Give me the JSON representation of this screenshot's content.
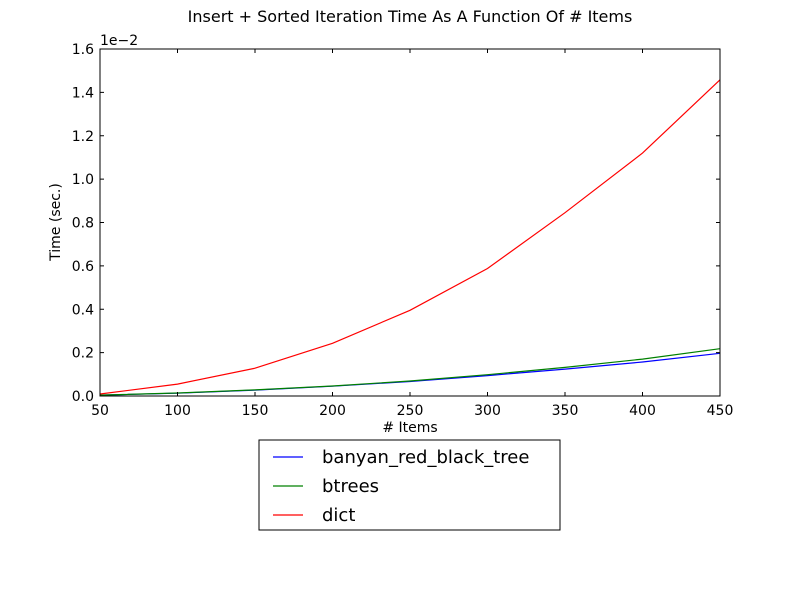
{
  "chart_data": {
    "type": "line",
    "title": "Insert + Sorted Iteration Time As A Function Of # Items",
    "xlabel": "# Items",
    "ylabel": "Time (sec.)",
    "y_exponent_label": "1e−2",
    "xlim": [
      50,
      450
    ],
    "ylim": [
      0,
      1.6
    ],
    "grid": false,
    "legend_placement": "below-center",
    "x": [
      50,
      100,
      150,
      200,
      250,
      300,
      350,
      400,
      450
    ],
    "x_ticks": [
      "50",
      "100",
      "150",
      "200",
      "250",
      "300",
      "350",
      "400",
      "450"
    ],
    "y_tick_values": [
      0,
      0.2,
      0.4,
      0.6,
      0.8,
      1.0,
      1.2,
      1.4,
      1.6
    ],
    "y_ticks": [
      "0.0",
      "0.2",
      "0.4",
      "0.6",
      "0.8",
      "1.0",
      "1.2",
      "1.4",
      "1.6"
    ],
    "series": [
      {
        "name": "banyan_red_black_tree",
        "color": "#0000ff",
        "values": [
          0.004,
          0.013,
          0.027,
          0.045,
          0.067,
          0.094,
          0.124,
          0.157,
          0.197
        ]
      },
      {
        "name": "btrees",
        "color": "#008000",
        "values": [
          0.004,
          0.014,
          0.028,
          0.046,
          0.069,
          0.098,
          0.132,
          0.17,
          0.218
        ]
      },
      {
        "name": "dict",
        "color": "#ff0000",
        "values": [
          0.009,
          0.055,
          0.128,
          0.243,
          0.395,
          0.588,
          0.845,
          1.12,
          1.458
        ]
      }
    ]
  }
}
